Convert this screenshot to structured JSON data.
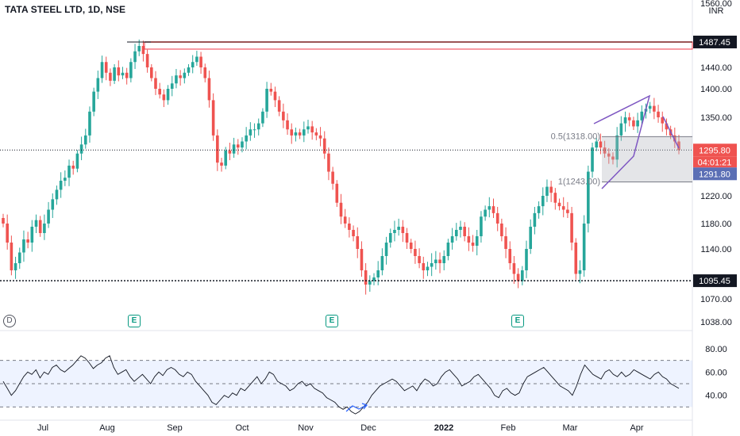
{
  "header": {
    "title": "TATA STEEL LTD, 1D, NSE"
  },
  "axis_unit": "INR",
  "chart_data": [
    {
      "type": "candlestick",
      "x_tick_labels": [
        "Jul",
        "Aug",
        "Sep",
        "Oct",
        "Nov",
        "Dec",
        "2022",
        "Feb",
        "Mar",
        "Apr"
      ],
      "y_tick_labels": [
        "1560.00",
        "1487.45",
        "1440.00",
        "1400.00",
        "1350.00",
        "1295.80",
        "1291.80",
        "1220.00",
        "1180.00",
        "1140.00",
        "1095.45",
        "1070.00",
        "1038.00"
      ],
      "ylim": [
        1038,
        1560
      ],
      "last_price": 1295.8,
      "countdown": "04:01:21",
      "secondary_price": 1291.8,
      "resistance_level": 1487.45,
      "support_level": 1095.45,
      "fib_labels": [
        "0.5(1318.00)",
        "1(1243.00)"
      ],
      "fib_levels": [
        1318.0,
        1243.0
      ],
      "close_series": [
        1180,
        1150,
        1110,
        1120,
        1135,
        1155,
        1150,
        1175,
        1185,
        1165,
        1180,
        1200,
        1215,
        1230,
        1245,
        1250,
        1270,
        1265,
        1290,
        1305,
        1320,
        1360,
        1395,
        1420,
        1450,
        1430,
        1415,
        1440,
        1425,
        1430,
        1420,
        1450,
        1470,
        1480,
        1465,
        1440,
        1420,
        1400,
        1390,
        1380,
        1400,
        1410,
        1425,
        1420,
        1430,
        1440,
        1450,
        1460,
        1440,
        1420,
        1380,
        1320,
        1275,
        1270,
        1295,
        1290,
        1305,
        1300,
        1310,
        1320,
        1330,
        1330,
        1340,
        1360,
        1400,
        1395,
        1380,
        1360,
        1345,
        1330,
        1320,
        1325,
        1320,
        1330,
        1335,
        1325,
        1320,
        1315,
        1290,
        1260,
        1240,
        1210,
        1190,
        1180,
        1170,
        1160,
        1140,
        1110,
        1090,
        1095,
        1100,
        1110,
        1130,
        1150,
        1165,
        1170,
        1175,
        1165,
        1150,
        1140,
        1130,
        1120,
        1110,
        1115,
        1120,
        1125,
        1120,
        1130,
        1150,
        1160,
        1170,
        1175,
        1160,
        1150,
        1145,
        1160,
        1190,
        1200,
        1205,
        1195,
        1180,
        1160,
        1140,
        1120,
        1105,
        1095,
        1110,
        1140,
        1175,
        1195,
        1205,
        1220,
        1235,
        1225,
        1210,
        1205,
        1200,
        1195,
        1150,
        1105,
        1110,
        1180,
        1260,
        1300,
        1310,
        1300,
        1290,
        1285,
        1280,
        1320,
        1340,
        1350,
        1345,
        1335,
        1345,
        1360,
        1365,
        1370,
        1360,
        1350,
        1340,
        1330,
        1320,
        1310,
        1295.8
      ],
      "rsi": {
        "ylim": [
          20,
          80
        ],
        "y_tick_labels": [
          "80.00",
          "60.00",
          "40.00"
        ],
        "levels": [
          70,
          50,
          30
        ],
        "values": [
          52,
          46,
          40,
          44,
          50,
          56,
          60,
          58,
          62,
          55,
          60,
          58,
          64,
          66,
          62,
          60,
          63,
          66,
          70,
          74,
          72,
          68,
          63,
          66,
          68,
          72,
          74,
          64,
          58,
          60,
          62,
          56,
          52,
          55,
          58,
          54,
          50,
          56,
          60,
          57,
          62,
          64,
          62,
          58,
          56,
          60,
          58,
          52,
          48,
          44,
          40,
          34,
          32,
          36,
          40,
          38,
          42,
          40,
          46,
          44,
          48,
          52,
          56,
          50,
          54,
          60,
          58,
          52,
          50,
          48,
          44,
          46,
          50,
          52,
          48,
          50,
          46,
          44,
          42,
          38,
          36,
          34,
          30,
          28,
          30,
          26,
          24,
          26,
          30,
          34,
          40,
          44,
          48,
          50,
          52,
          54,
          52,
          48,
          44,
          46,
          48,
          44,
          50,
          54,
          52,
          48,
          50,
          56,
          60,
          62,
          58,
          54,
          48,
          50,
          52,
          56,
          58,
          54,
          50,
          46,
          40,
          38,
          44,
          46,
          42,
          40,
          42,
          50,
          56,
          58,
          60,
          62,
          64,
          60,
          56,
          52,
          48,
          46,
          44,
          40,
          48,
          58,
          66,
          62,
          58,
          56,
          54,
          60,
          62,
          58,
          56,
          60,
          56,
          58,
          62,
          60,
          58,
          56,
          54,
          58,
          60,
          56,
          54,
          50,
          48,
          46
        ]
      }
    }
  ]
}
